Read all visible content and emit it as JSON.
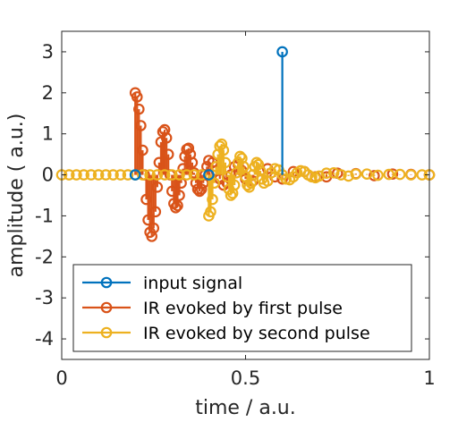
{
  "chart_data": {
    "type": "stem",
    "xlabel": "time / a.u.",
    "ylabel": "amplitude ( a.u.)",
    "xlim": [
      0,
      1
    ],
    "ylim": [
      -4.5,
      3.5
    ],
    "xticks": [
      "0",
      "0.5",
      "1"
    ],
    "xtick_values": [
      0,
      0.5,
      1
    ],
    "yticks": [
      "-4",
      "-3",
      "-2",
      "-1",
      "0",
      "1",
      "2",
      "3"
    ],
    "ytick_values": [
      -4,
      -3,
      -2,
      -1,
      0,
      1,
      2,
      3
    ],
    "grid": false,
    "box": true,
    "legend_position": "bottom-left",
    "series": [
      {
        "name": "input signal",
        "color": "#0072BD",
        "x": [
          0.2,
          0.4,
          0.6
        ],
        "y": [
          0,
          0,
          3
        ]
      },
      {
        "name": "IR evoked by first pulse",
        "color": "#D95319",
        "x": [
          0.2,
          0.205,
          0.21,
          0.215,
          0.22,
          0.225,
          0.23,
          0.235,
          0.24,
          0.245,
          0.25,
          0.255,
          0.26,
          0.265,
          0.27,
          0.275,
          0.28,
          0.285,
          0.29,
          0.295,
          0.3,
          0.305,
          0.31,
          0.315,
          0.32,
          0.325,
          0.33,
          0.335,
          0.34,
          0.345,
          0.35,
          0.355,
          0.36,
          0.365,
          0.37,
          0.375,
          0.38,
          0.385,
          0.39,
          0.395,
          0.4,
          0.41,
          0.42,
          0.43,
          0.44,
          0.45,
          0.46,
          0.47,
          0.48,
          0.49,
          0.5,
          0.52,
          0.54,
          0.56,
          0.58,
          0.6,
          0.63,
          0.66,
          0.69,
          0.72,
          0.75,
          0.8,
          0.85,
          0.9,
          0.95,
          1.0
        ],
        "y": [
          2.0,
          1.9,
          1.6,
          1.2,
          0.6,
          0.0,
          -0.6,
          -1.1,
          -1.4,
          -1.5,
          -1.3,
          -0.9,
          -0.3,
          0.3,
          0.8,
          1.05,
          1.1,
          0.9,
          0.5,
          0.0,
          -0.4,
          -0.7,
          -0.8,
          -0.75,
          -0.5,
          -0.2,
          0.15,
          0.45,
          0.62,
          0.65,
          0.5,
          0.3,
          0.05,
          -0.2,
          -0.35,
          -0.4,
          -0.35,
          -0.2,
          0.0,
          0.2,
          0.35,
          0.3,
          0.1,
          -0.1,
          -0.25,
          -0.2,
          0.0,
          0.2,
          0.25,
          0.1,
          -0.1,
          -0.15,
          0.1,
          0.15,
          -0.05,
          -0.1,
          0.08,
          0.08,
          -0.05,
          -0.05,
          0.04,
          0.03,
          -0.02,
          0.02,
          0.01,
          0.0
        ]
      },
      {
        "name": "IR evoked by second pulse",
        "color": "#EDB120",
        "x": [
          0.0,
          0.02,
          0.04,
          0.06,
          0.08,
          0.1,
          0.12,
          0.14,
          0.16,
          0.18,
          0.2,
          0.22,
          0.24,
          0.26,
          0.28,
          0.3,
          0.32,
          0.34,
          0.36,
          0.38,
          0.4,
          0.405,
          0.41,
          0.415,
          0.42,
          0.425,
          0.43,
          0.435,
          0.44,
          0.445,
          0.45,
          0.455,
          0.46,
          0.465,
          0.47,
          0.475,
          0.48,
          0.485,
          0.49,
          0.495,
          0.5,
          0.505,
          0.51,
          0.515,
          0.52,
          0.525,
          0.53,
          0.535,
          0.54,
          0.545,
          0.55,
          0.56,
          0.57,
          0.58,
          0.59,
          0.6,
          0.61,
          0.62,
          0.63,
          0.64,
          0.65,
          0.66,
          0.67,
          0.68,
          0.69,
          0.7,
          0.72,
          0.74,
          0.76,
          0.78,
          0.8,
          0.83,
          0.86,
          0.89,
          0.92,
          0.95,
          0.98,
          1.0
        ],
        "y": [
          0,
          0,
          0,
          0,
          0,
          0,
          0,
          0,
          0,
          0,
          0,
          0,
          0,
          0,
          0,
          0,
          0,
          0,
          0,
          0,
          -1.0,
          -0.9,
          -0.6,
          -0.2,
          0.2,
          0.5,
          0.7,
          0.75,
          0.6,
          0.3,
          -0.05,
          -0.35,
          -0.5,
          -0.45,
          -0.25,
          0.05,
          0.3,
          0.45,
          0.4,
          0.2,
          -0.05,
          -0.25,
          -0.3,
          -0.2,
          0.0,
          0.2,
          0.3,
          0.25,
          0.1,
          -0.1,
          -0.2,
          -0.15,
          0.05,
          0.15,
          0.12,
          0.0,
          -0.1,
          -0.12,
          -0.05,
          0.05,
          0.1,
          0.08,
          0.0,
          -0.05,
          -0.07,
          -0.03,
          0.04,
          0.05,
          0.0,
          -0.03,
          0.02,
          0.02,
          -0.01,
          0.01,
          0.01,
          0.0,
          0.0,
          0.0
        ]
      }
    ]
  }
}
